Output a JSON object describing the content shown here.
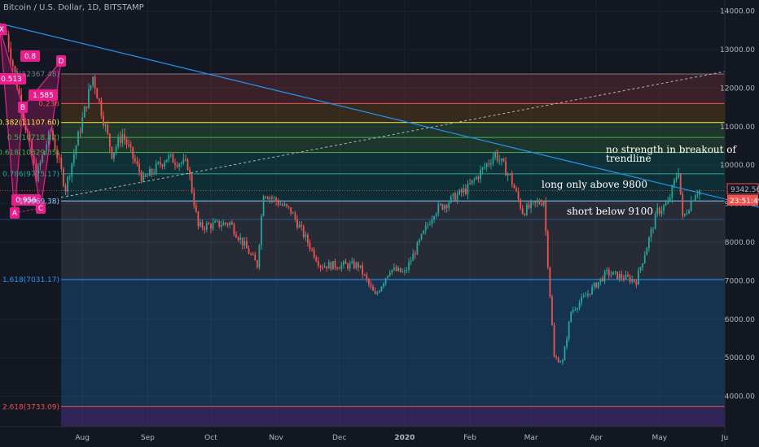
{
  "header": {
    "title": "Bitcoin / U.S. Dollar, 1D, BITSTAMP"
  },
  "price_tag": {
    "value": "9342.56",
    "countdown": "23:51:49"
  },
  "annotations": {
    "no_strength": [
      "no strength in breakout of",
      "trendline"
    ],
    "long_only": "long only above 9800",
    "short_below": "short below 9100"
  },
  "pattern_points": [
    "X",
    "A",
    "B",
    "C",
    "D"
  ],
  "ratio_labels": [
    "0.8",
    "0.513",
    "1.585",
    "0.956"
  ],
  "colors": {
    "background": "#131722",
    "up": "#26a69a",
    "down": "#ef5350",
    "trendline": "#2196f3",
    "pattern": "#e91e8c",
    "fib_line": "#787b86"
  },
  "chart_data": {
    "type": "candlestick",
    "title": "Bitcoin / U.S. Dollar, 1D, BITSTAMP",
    "x_ticks": [
      "Aug",
      "Sep",
      "Oct",
      "Nov",
      "Dec",
      "2020",
      "Feb",
      "Mar",
      "Apr",
      "May",
      "Ju"
    ],
    "y_ticks": [
      4000.0,
      5000.0,
      6000.0,
      7000.0,
      8000.0,
      9000.0,
      10000.0,
      11000.0,
      12000.0,
      13000.0,
      14000.0
    ],
    "ylim": [
      3400,
      14000
    ],
    "last_price": 9342.56,
    "fib_levels": [
      {
        "ratio": "0",
        "label": "0(12367.48)",
        "price": 12367.48
      },
      {
        "ratio": "0.236",
        "label": "0.236",
        "price": 11600
      },
      {
        "ratio": "0.382",
        "label": "0.382(11107.60)",
        "price": 11107.6
      },
      {
        "ratio": "0.5",
        "label": "0.5(10718.42)",
        "price": 10718.42
      },
      {
        "ratio": "0.618",
        "label": "0.618(10329.35)",
        "price": 10329.35
      },
      {
        "ratio": "0.786",
        "label": "0.786(9775.17)",
        "price": 9775.17
      },
      {
        "ratio": "1",
        "label": "1(9069.38)",
        "price": 9069.38
      },
      {
        "ratio": "1.618",
        "label": "1.618(7031.17)",
        "price": 7031.17
      },
      {
        "ratio": "2.618",
        "label": "2.618(3733.09)",
        "price": 3733.09
      }
    ],
    "price_path": [
      [
        "2019-06-26",
        13400
      ],
      [
        "2019-07-10",
        9700
      ],
      [
        "2019-07-17",
        10900
      ],
      [
        "2019-07-24",
        9400
      ],
      [
        "2019-08-06",
        12300
      ],
      [
        "2019-08-15",
        10300
      ],
      [
        "2019-08-20",
        10800
      ],
      [
        "2019-08-30",
        9600
      ],
      [
        "2019-09-10",
        10200
      ],
      [
        "2019-09-20",
        10000
      ],
      [
        "2019-09-25",
        8400
      ],
      [
        "2019-10-10",
        8500
      ],
      [
        "2019-10-23",
        7400
      ],
      [
        "2019-10-26",
        9300
      ],
      [
        "2019-11-08",
        8800
      ],
      [
        "2019-11-22",
        7400
      ],
      [
        "2019-12-10",
        7400
      ],
      [
        "2019-12-18",
        6600
      ],
      [
        "2019-12-25",
        7300
      ],
      [
        "2020-01-01",
        7200
      ],
      [
        "2020-01-15",
        8800
      ],
      [
        "2020-01-31",
        9400
      ],
      [
        "2020-02-13",
        10300
      ],
      [
        "2020-02-20",
        9700
      ],
      [
        "2020-02-26",
        8800
      ],
      [
        "2020-03-07",
        9100
      ],
      [
        "2020-03-12",
        5000
      ],
      [
        "2020-03-16",
        4900
      ],
      [
        "2020-03-20",
        6200
      ],
      [
        "2020-04-06",
        7200
      ],
      [
        "2020-04-20",
        7000
      ],
      [
        "2020-04-30",
        8800
      ],
      [
        "2020-05-05",
        9000
      ],
      [
        "2020-05-10",
        9900
      ],
      [
        "2020-05-12",
        8600
      ],
      [
        "2020-05-18",
        9300
      ],
      [
        "2020-05-20",
        9340
      ]
    ]
  }
}
